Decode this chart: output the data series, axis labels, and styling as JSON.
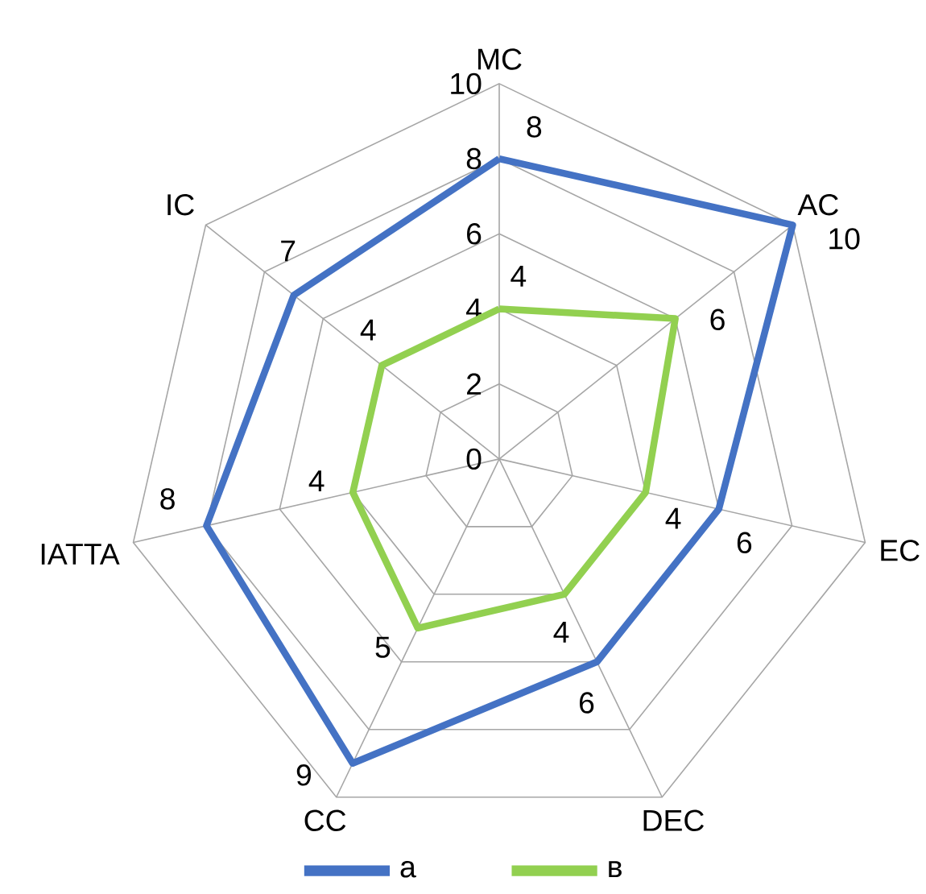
{
  "chart_data": {
    "type": "radar",
    "categories": [
      "MC",
      "AC",
      "EC",
      "DEC",
      "CC",
      "IATTA",
      "IC"
    ],
    "series": [
      {
        "name": "a",
        "color": "#4472c4",
        "values": [
          8,
          10,
          6,
          6,
          9,
          8,
          7
        ]
      },
      {
        "name": "в",
        "color": "#92d050",
        "values": [
          4,
          6,
          4,
          4,
          5,
          4,
          4
        ]
      }
    ],
    "ylim": [
      0,
      10
    ],
    "yticks": [
      0,
      2,
      4,
      6,
      8,
      10
    ],
    "data_labels": true,
    "legend": "bottom"
  }
}
